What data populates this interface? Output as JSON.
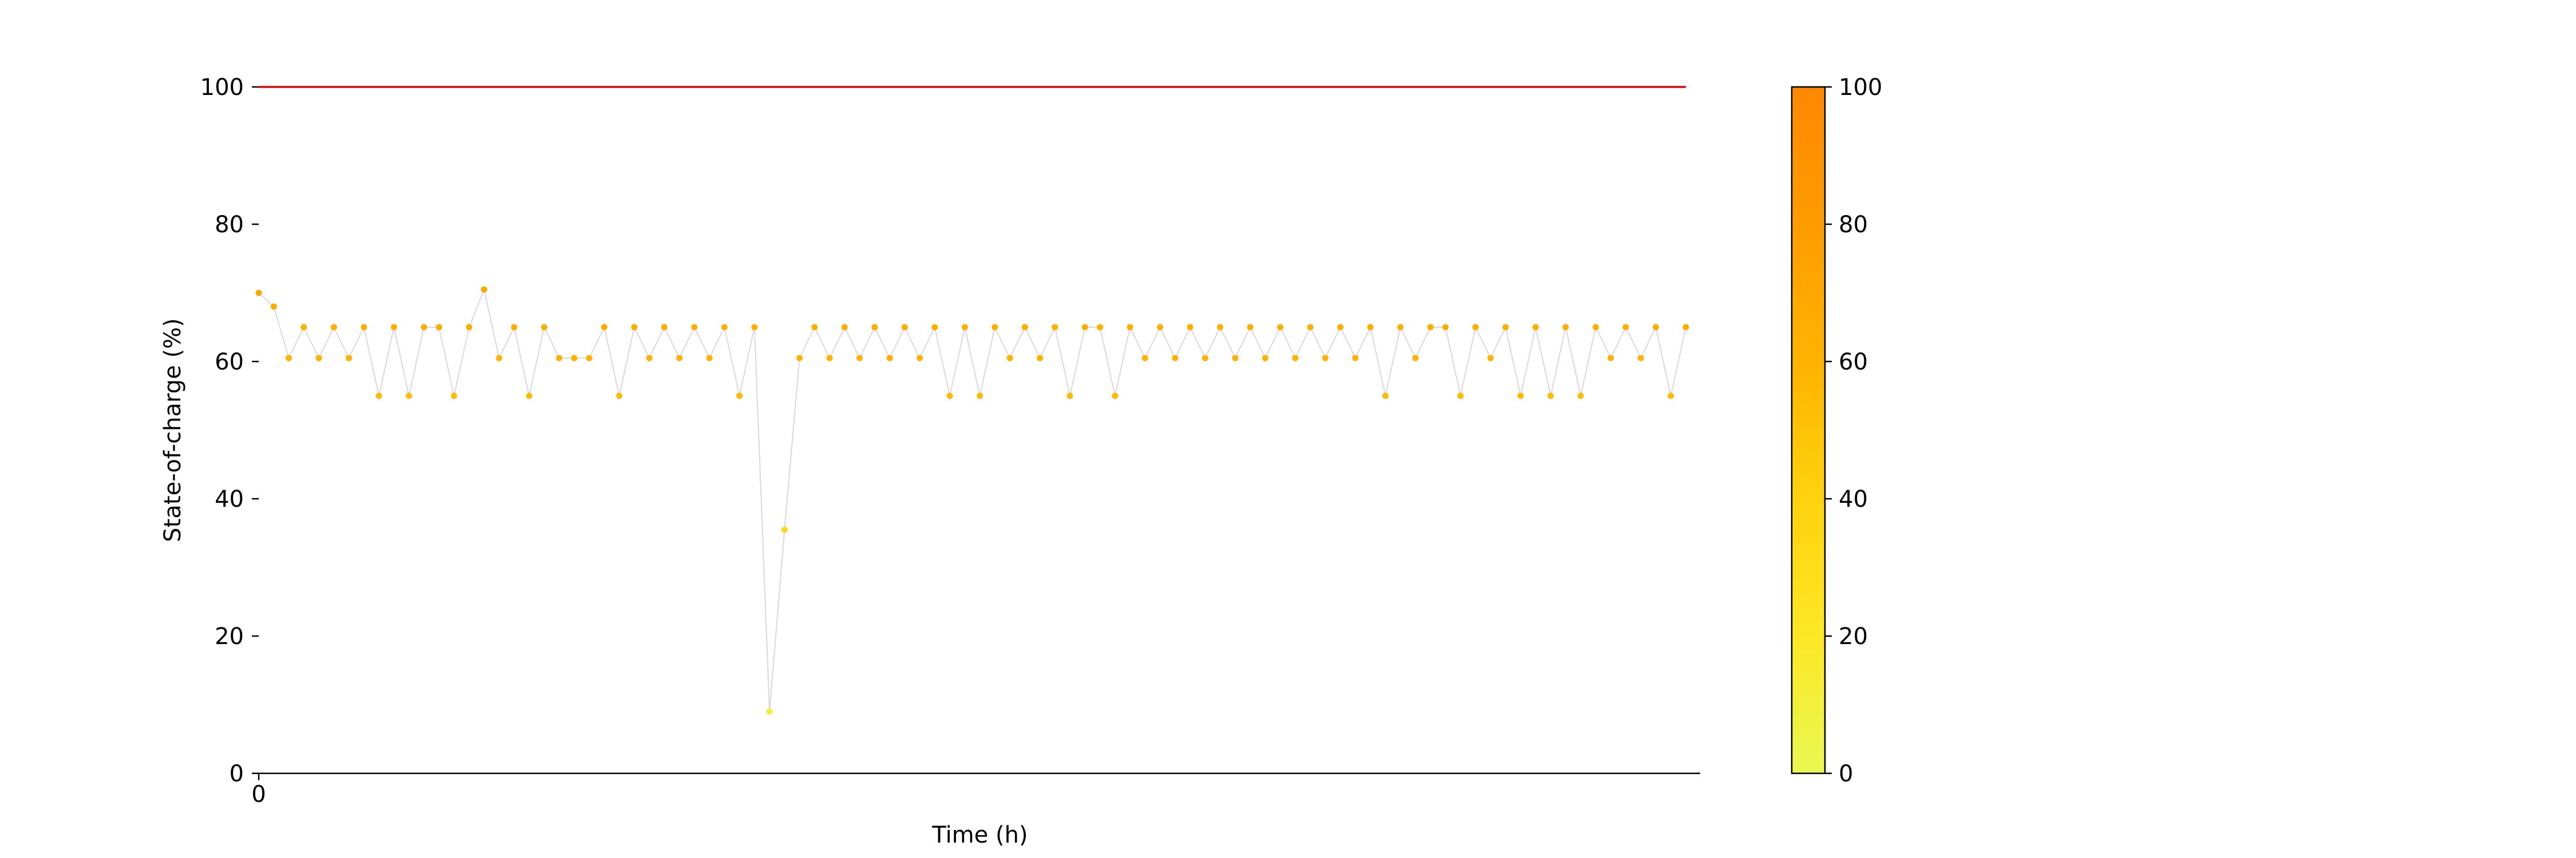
{
  "chart_data": {
    "type": "scatter",
    "title": "",
    "xlabel": "Time (h)",
    "ylabel": "State-of-charge (%)",
    "xlim": [
      0,
      95
    ],
    "ylim": [
      0,
      100
    ],
    "x_ticks": [
      "0"
    ],
    "y_ticks": [
      "0",
      "20",
      "40",
      "60",
      "80",
      "100"
    ],
    "grid": false,
    "reference_line": {
      "y": 100,
      "color": "#c62828"
    },
    "connector_color": "#d9d9d9",
    "colorbar": {
      "min": 0,
      "max": 100,
      "ticks": [
        "0",
        "20",
        "40",
        "60",
        "80",
        "100"
      ],
      "colors": [
        "#e9f852",
        "#fde725",
        "#ffd20f",
        "#ffb300",
        "#ff9c00",
        "#ff8800"
      ]
    },
    "series": [
      {
        "x": [
          0,
          1,
          2,
          3,
          4,
          5,
          6,
          7,
          8,
          9,
          10,
          11,
          12,
          13,
          14,
          15,
          16,
          17,
          18,
          19,
          20,
          21,
          22,
          23,
          24,
          25,
          26,
          27,
          28,
          29,
          30,
          31,
          32,
          33,
          34,
          35,
          36,
          37,
          38,
          39,
          40,
          41,
          42,
          43,
          44,
          45,
          46,
          47,
          48,
          49,
          50,
          51,
          52,
          53,
          54,
          55,
          56,
          57,
          58,
          59,
          60,
          61,
          62,
          63,
          64,
          65,
          66,
          67,
          68,
          69,
          70,
          71,
          72,
          73,
          74,
          75,
          76,
          77,
          78,
          79,
          80,
          81,
          82,
          83,
          84,
          85,
          86,
          87,
          88,
          89,
          90,
          91,
          92,
          93,
          94,
          95
        ],
        "y": [
          70,
          68,
          60.5,
          65,
          60.5,
          65,
          60.5,
          65,
          55,
          65,
          55,
          65,
          65,
          55,
          65,
          70.5,
          60.5,
          65,
          55,
          65,
          60.5,
          60.5,
          60.5,
          65,
          55,
          65,
          60.5,
          65,
          60.5,
          65,
          60.5,
          65,
          55,
          65,
          9,
          35.5,
          60.5,
          65,
          60.5,
          65,
          60.5,
          65,
          60.5,
          65,
          60.5,
          65,
          55,
          65,
          55,
          65,
          60.5,
          65,
          60.5,
          65,
          55,
          65,
          65,
          55,
          65,
          60.5,
          65,
          60.5,
          65,
          60.5,
          65,
          60.5,
          65,
          60.5,
          65,
          60.5,
          65,
          60.5,
          65,
          60.5,
          65,
          55,
          65,
          60.5,
          65,
          65,
          55,
          65,
          60.5,
          65,
          55,
          65,
          55,
          65,
          55,
          65,
          60.5,
          65,
          60.5,
          65,
          55,
          65
        ]
      }
    ]
  }
}
